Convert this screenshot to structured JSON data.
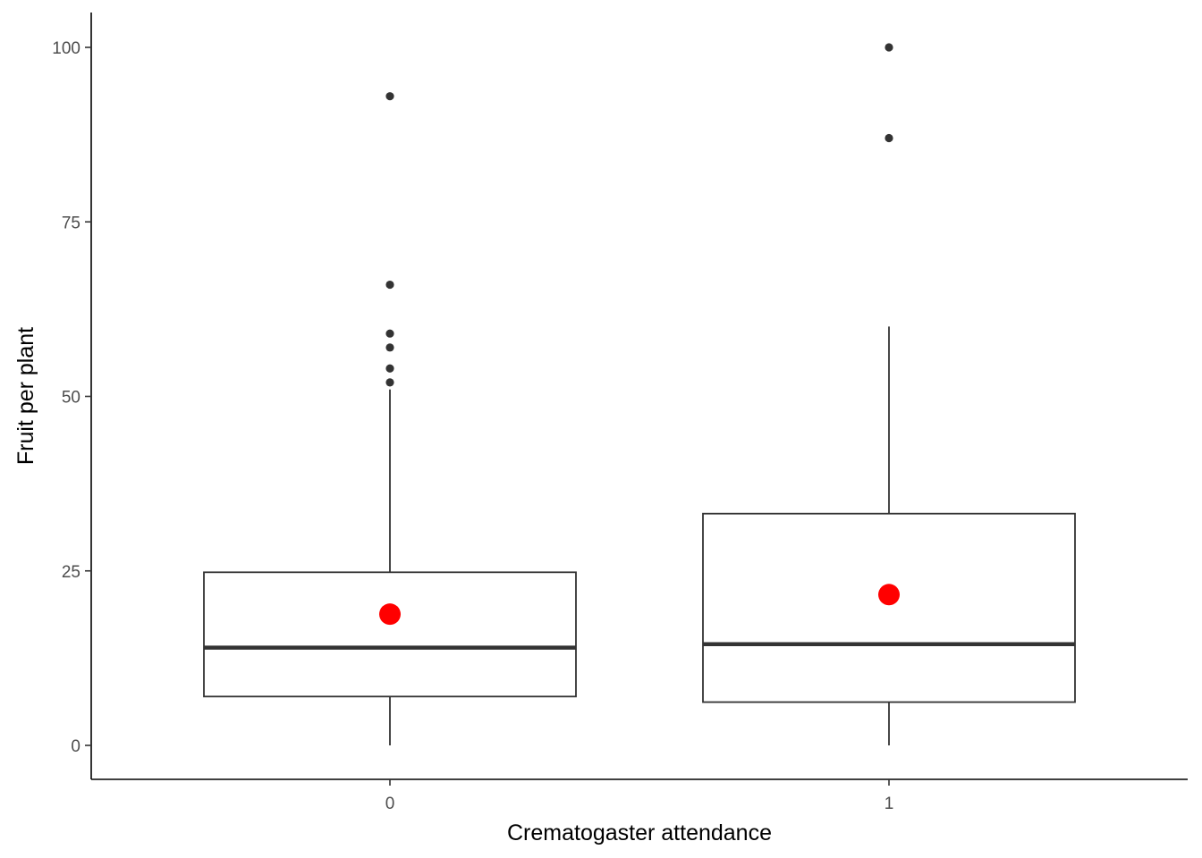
{
  "chart_data": {
    "type": "box",
    "title": "",
    "xlabel": "Crematogaster attendance",
    "ylabel": "Fruit per plant",
    "categories": [
      "0",
      "1"
    ],
    "ylim": [
      -5,
      105
    ],
    "yticks": [
      0,
      25,
      50,
      75,
      100
    ],
    "grid": false,
    "legend": "none",
    "boxes": [
      {
        "category": "0",
        "min": 0,
        "q1": 7,
        "median": 14,
        "q3": 24.8,
        "max": 51,
        "mean": 18.8,
        "outliers": [
          52,
          54,
          57,
          59,
          66,
          93
        ]
      },
      {
        "category": "1",
        "min": 0,
        "q1": 6.2,
        "median": 14.5,
        "q3": 33.2,
        "max": 60,
        "mean": 21.6,
        "outliers": [
          87,
          100
        ]
      }
    ],
    "colors": {
      "box_line": "#333333",
      "mean_point": "#ff0000",
      "outlier": "#333333",
      "axis": "#000000"
    }
  }
}
